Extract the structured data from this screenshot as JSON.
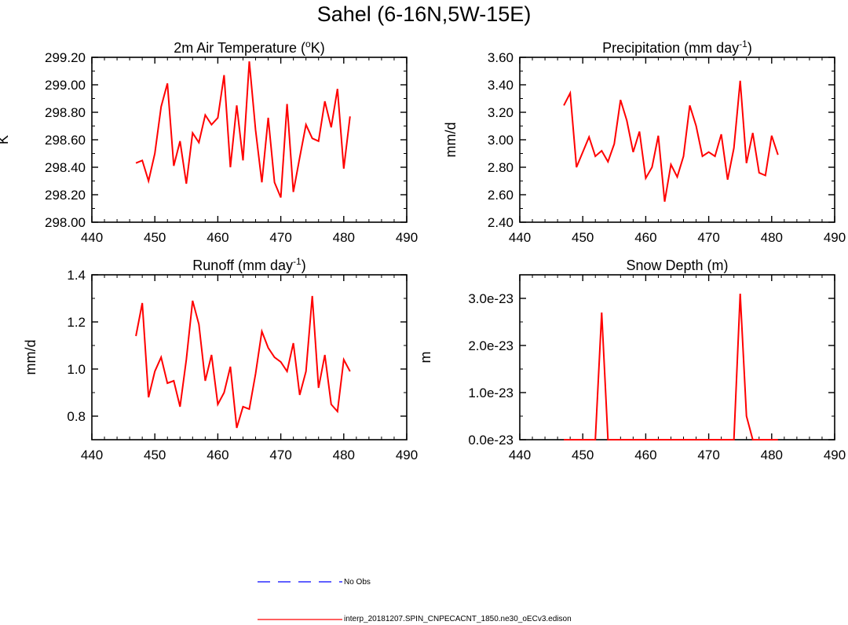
{
  "title": "Sahel (6-16N,5W-15E)",
  "colors": {
    "model_line": "#ff0000",
    "obs_line": "#0000ff",
    "axis": "#000000"
  },
  "legend": [
    {
      "label": "No Obs",
      "style": "dashed",
      "color": "#0000ff"
    },
    {
      "label": "interp_20181207.SPIN_CNPECACNT_1850.ne30_oECv3.edison",
      "style": "solid",
      "color": "#ff0000"
    }
  ],
  "chart_data": [
    {
      "type": "line",
      "title": "2m Air Temperature (",
      "title_sup": "o",
      "title_suffix": "K)",
      "ylabel": "K",
      "xlim": [
        440,
        490
      ],
      "ylim": [
        298.0,
        299.2
      ],
      "xticks": [
        440,
        450,
        460,
        470,
        480,
        490
      ],
      "xtick_labels": [
        "440",
        "450",
        "460",
        "470",
        "480",
        "490"
      ],
      "yticks": [
        298.0,
        298.2,
        298.4,
        298.6,
        298.8,
        299.0,
        299.2
      ],
      "ytick_labels": [
        "298.00",
        "298.20",
        "298.40",
        "298.60",
        "298.80",
        "299.00",
        "299.20"
      ],
      "series": [
        {
          "name": "interp_20181207.SPIN_CNPECACNT_1850.ne30_oECv3.edison",
          "x": [
            447,
            448,
            449,
            450,
            451,
            452,
            453,
            454,
            455,
            456,
            457,
            458,
            459,
            460,
            461,
            462,
            463,
            464,
            465,
            466,
            467,
            468,
            469,
            470,
            471,
            472,
            473,
            474,
            475,
            476,
            477,
            478,
            479,
            480,
            481
          ],
          "values": [
            298.43,
            298.45,
            298.3,
            298.5,
            298.84,
            299.01,
            298.41,
            298.59,
            298.28,
            298.65,
            298.58,
            298.78,
            298.71,
            298.76,
            299.07,
            298.4,
            298.85,
            298.45,
            299.17,
            298.67,
            298.29,
            298.76,
            298.29,
            298.18,
            298.86,
            298.22,
            298.47,
            298.71,
            298.61,
            298.59,
            298.88,
            298.69,
            298.97,
            298.39,
            298.77
          ]
        }
      ]
    },
    {
      "type": "line",
      "title": "Precipitation (mm day",
      "title_sup": "-1",
      "title_suffix": ")",
      "ylabel": "mm/d",
      "xlim": [
        440,
        490
      ],
      "ylim": [
        2.4,
        3.6
      ],
      "xticks": [
        440,
        450,
        460,
        470,
        480,
        490
      ],
      "xtick_labels": [
        "440",
        "450",
        "460",
        "470",
        "480",
        "490"
      ],
      "yticks": [
        2.4,
        2.6,
        2.8,
        3.0,
        3.2,
        3.4,
        3.6
      ],
      "ytick_labels": [
        "2.40",
        "2.60",
        "2.80",
        "3.00",
        "3.20",
        "3.40",
        "3.60"
      ],
      "series": [
        {
          "name": "interp_20181207.SPIN_CNPECACNT_1850.ne30_oECv3.edison",
          "x": [
            447,
            448,
            449,
            450,
            451,
            452,
            453,
            454,
            455,
            456,
            457,
            458,
            459,
            460,
            461,
            462,
            463,
            464,
            465,
            466,
            467,
            468,
            469,
            470,
            471,
            472,
            473,
            474,
            475,
            476,
            477,
            478,
            479,
            480,
            481
          ],
          "values": [
            3.25,
            3.34,
            2.8,
            2.91,
            3.02,
            2.88,
            2.92,
            2.84,
            2.97,
            3.29,
            3.14,
            2.91,
            3.06,
            2.72,
            2.8,
            3.03,
            2.55,
            2.82,
            2.73,
            2.88,
            3.25,
            3.1,
            2.88,
            2.91,
            2.88,
            3.04,
            2.71,
            2.94,
            3.43,
            2.83,
            3.05,
            2.76,
            2.74,
            3.03,
            2.89
          ]
        }
      ]
    },
    {
      "type": "line",
      "title": "Runoff (mm day",
      "title_sup": "-1",
      "title_suffix": ")",
      "ylabel": "mm/d",
      "xlim": [
        440,
        490
      ],
      "ylim": [
        0.7,
        1.4
      ],
      "xticks": [
        440,
        450,
        460,
        470,
        480,
        490
      ],
      "xtick_labels": [
        "440",
        "450",
        "460",
        "470",
        "480",
        "490"
      ],
      "yticks": [
        0.8,
        1.0,
        1.2,
        1.4
      ],
      "ytick_labels": [
        "0.8",
        "1.0",
        "1.2",
        "1.4"
      ],
      "series": [
        {
          "name": "interp_20181207.SPIN_CNPECACNT_1850.ne30_oECv3.edison",
          "x": [
            447,
            448,
            449,
            450,
            451,
            452,
            453,
            454,
            455,
            456,
            457,
            458,
            459,
            460,
            461,
            462,
            463,
            464,
            465,
            466,
            467,
            468,
            469,
            470,
            471,
            472,
            473,
            474,
            475,
            476,
            477,
            478,
            479,
            480,
            481
          ],
          "values": [
            1.14,
            1.28,
            0.88,
            0.99,
            1.05,
            0.94,
            0.95,
            0.84,
            1.04,
            1.29,
            1.19,
            0.95,
            1.06,
            0.85,
            0.9,
            1.01,
            0.75,
            0.84,
            0.83,
            0.98,
            1.16,
            1.09,
            1.05,
            1.03,
            0.99,
            1.11,
            0.89,
            0.99,
            1.31,
            0.92,
            1.06,
            0.85,
            0.82,
            1.04,
            0.99
          ]
        }
      ]
    },
    {
      "type": "line",
      "title": "Snow Depth (m)",
      "title_sup": "",
      "title_suffix": "",
      "ylabel": "m",
      "xlim": [
        440,
        490
      ],
      "ylim": [
        0,
        3.5e-23
      ],
      "xticks": [
        440,
        450,
        460,
        470,
        480,
        490
      ],
      "xtick_labels": [
        "440",
        "450",
        "460",
        "470",
        "480",
        "490"
      ],
      "yticks": [
        0,
        1e-23,
        2e-23,
        3e-23
      ],
      "ytick_labels": [
        "0.0e-23",
        "1.0e-23",
        "2.0e-23",
        "3.0e-23"
      ],
      "series": [
        {
          "name": "interp_20181207.SPIN_CNPECACNT_1850.ne30_oECv3.edison",
          "x": [
            447,
            448,
            449,
            450,
            451,
            452,
            453,
            454,
            455,
            456,
            457,
            458,
            459,
            460,
            461,
            462,
            463,
            464,
            465,
            466,
            467,
            468,
            469,
            470,
            471,
            472,
            473,
            474,
            475,
            476,
            477,
            478,
            479,
            480,
            481
          ],
          "values": [
            0,
            0,
            0,
            0,
            0,
            0,
            2.7e-23,
            0,
            0,
            0,
            0,
            0,
            0,
            0,
            0,
            0,
            0,
            0,
            0,
            0,
            0,
            0,
            0,
            0,
            0,
            0,
            0,
            0,
            3.1e-23,
            5e-24,
            0,
            0,
            0,
            0,
            0
          ]
        }
      ]
    }
  ]
}
